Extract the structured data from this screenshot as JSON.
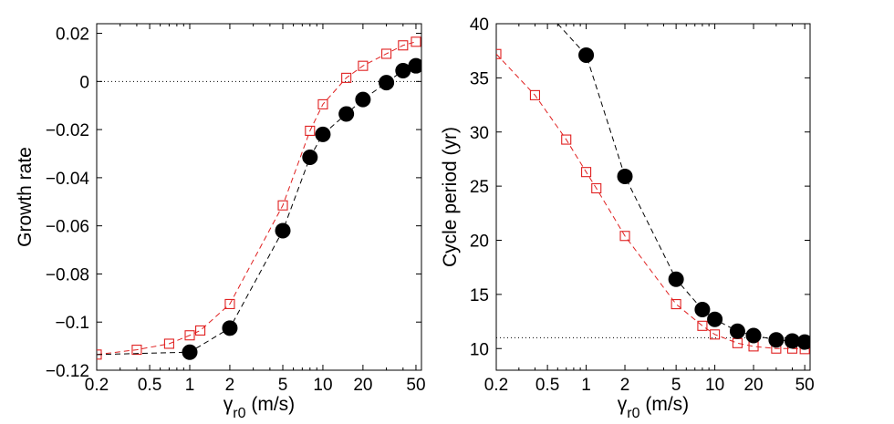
{
  "chart_data": [
    {
      "type": "line",
      "xscale": "log",
      "xlabel": "γ",
      "xlabel_sub": "r0",
      "xlabel_unit": " (m/s)",
      "ylabel": "Growth rate",
      "xlim": [
        0.2,
        55
      ],
      "ylim": [
        -0.12,
        0.024
      ],
      "xticks": [
        0.2,
        0.5,
        1,
        2,
        5,
        10,
        20,
        50
      ],
      "xtick_labels": [
        "0.2",
        "0.5",
        "1",
        "2",
        "5",
        "10",
        "20",
        "50"
      ],
      "yticks": [
        -0.12,
        -0.1,
        -0.08,
        -0.06,
        -0.04,
        -0.02,
        0,
        0.02
      ],
      "ytick_labels": [
        "−0.12",
        "−0.1",
        "−0.08",
        "−0.06",
        "−0.04",
        "−0.02",
        "0",
        "0.02"
      ],
      "reference_line": {
        "axis": "y",
        "value": 0,
        "style": "dotted"
      },
      "series": [
        {
          "name": "red squares",
          "color": "#e02020",
          "marker": "square-open",
          "line": "dashed",
          "x": [
            0.2,
            0.4,
            0.7,
            1,
            1.2,
            2,
            5,
            8,
            10,
            15,
            20,
            30,
            40,
            50
          ],
          "y": [
            -0.1135,
            -0.1115,
            -0.109,
            -0.1055,
            -0.1035,
            -0.0925,
            -0.0515,
            -0.0205,
            -0.0095,
            0.0015,
            0.0065,
            0.0115,
            0.015,
            0.0165
          ]
        },
        {
          "name": "black circles",
          "color": "#000000",
          "marker": "circle-filled",
          "line": "dashed",
          "x": [
            0.2,
            1,
            2,
            5,
            8,
            10,
            15,
            20,
            30,
            40,
            50
          ],
          "y": [
            -0.1135,
            -0.1125,
            -0.1025,
            -0.062,
            -0.0315,
            -0.022,
            -0.0135,
            -0.0075,
            -0.0005,
            0.0045,
            0.0065
          ],
          "marker_from_index": 1
        }
      ]
    },
    {
      "type": "line",
      "xscale": "log",
      "xlabel": "γ",
      "xlabel_sub": "r0",
      "xlabel_unit": " (m/s)",
      "ylabel": "Cycle period (yr)",
      "xlim": [
        0.2,
        55
      ],
      "ylim": [
        8,
        40
      ],
      "xticks": [
        0.2,
        0.5,
        1,
        2,
        5,
        10,
        20,
        50
      ],
      "xtick_labels": [
        "0.2",
        "0.5",
        "1",
        "2",
        "5",
        "10",
        "20",
        "50"
      ],
      "yticks": [
        10,
        15,
        20,
        25,
        30,
        35,
        40
      ],
      "ytick_labels": [
        "10",
        "15",
        "20",
        "25",
        "30",
        "35",
        "40"
      ],
      "reference_line": {
        "axis": "y",
        "value": 11,
        "style": "dotted"
      },
      "series": [
        {
          "name": "red squares",
          "color": "#e02020",
          "marker": "square-open",
          "line": "dashed",
          "x": [
            0.2,
            0.4,
            0.7,
            1,
            1.2,
            2,
            5,
            8,
            10,
            15,
            20,
            30,
            40,
            50
          ],
          "y": [
            37.2,
            33.4,
            29.3,
            26.3,
            24.8,
            20.4,
            14.1,
            12.1,
            11.3,
            10.5,
            10.2,
            10.0,
            10.0,
            9.95
          ]
        },
        {
          "name": "black circles",
          "color": "#000000",
          "marker": "circle-filled",
          "line": "dashed",
          "x": [
            0.6,
            1,
            2,
            5,
            8,
            10,
            15,
            20,
            30,
            40,
            50
          ],
          "y": [
            40,
            37.1,
            25.9,
            16.4,
            13.6,
            12.7,
            11.6,
            11.2,
            10.8,
            10.7,
            10.6
          ],
          "marker_from_index": 1
        }
      ]
    }
  ]
}
